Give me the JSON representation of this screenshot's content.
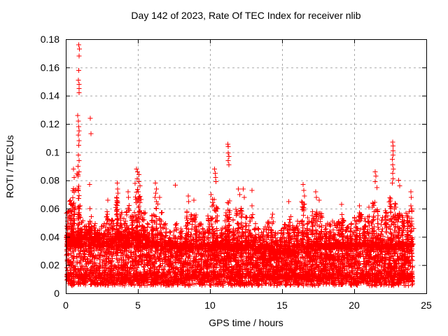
{
  "chart_data": {
    "type": "scatter",
    "title": "Day 142 of 2023, Rate Of TEC Index for receiver nlib",
    "xlabel": "GPS time / hours",
    "ylabel": "ROTI / TECUs",
    "xlim": [
      0,
      25
    ],
    "ylim": [
      0,
      0.18
    ],
    "xticks": [
      0,
      5,
      10,
      15,
      20,
      25
    ],
    "xtick_labels": [
      "0",
      "5",
      "10",
      "15",
      "20",
      "25"
    ],
    "yticks": [
      0,
      0.02,
      0.04,
      0.06,
      0.08,
      0.1,
      0.12,
      0.14,
      0.16,
      0.18
    ],
    "ytick_labels": [
      "0",
      "0.02",
      "0.04",
      "0.06",
      "0.08",
      "0.1",
      "0.12",
      "0.14",
      "0.16",
      "0.18"
    ],
    "grid": true,
    "grid_color": "#a8a8a8",
    "frame_color": "#000000",
    "legend": "none",
    "marker": {
      "shape": "plus",
      "color": "#ff0000",
      "size": 7
    },
    "x_data_range": [
      0.05,
      24.05
    ],
    "outliers": [
      [
        0.55,
        0.088
      ],
      [
        0.6,
        0.082
      ],
      [
        0.88,
        0.176
      ],
      [
        0.92,
        0.173
      ],
      [
        0.9,
        0.168
      ],
      [
        0.93,
        0.158
      ],
      [
        0.88,
        0.151
      ],
      [
        0.92,
        0.148
      ],
      [
        0.9,
        0.145
      ],
      [
        0.91,
        0.142
      ],
      [
        0.85,
        0.126
      ],
      [
        0.9,
        0.122
      ],
      [
        0.88,
        0.118
      ],
      [
        0.92,
        0.115
      ],
      [
        0.87,
        0.112
      ],
      [
        0.9,
        0.108
      ],
      [
        0.93,
        0.105
      ],
      [
        0.88,
        0.098
      ],
      [
        0.91,
        0.094
      ],
      [
        0.86,
        0.09
      ],
      [
        0.92,
        0.086
      ],
      [
        1.7,
        0.124
      ],
      [
        1.75,
        0.113
      ],
      [
        1.68,
        0.077
      ],
      [
        2.9,
        0.066
      ],
      [
        3.55,
        0.078
      ],
      [
        3.6,
        0.074
      ],
      [
        3.65,
        0.071
      ],
      [
        3.5,
        0.068
      ],
      [
        4.3,
        0.072
      ],
      [
        4.35,
        0.068
      ],
      [
        4.9,
        0.088
      ],
      [
        5.0,
        0.086
      ],
      [
        5.1,
        0.084
      ],
      [
        4.95,
        0.081
      ],
      [
        5.05,
        0.079
      ],
      [
        5.15,
        0.076
      ],
      [
        6.2,
        0.078
      ],
      [
        6.3,
        0.074
      ],
      [
        6.25,
        0.071
      ],
      [
        6.5,
        0.068
      ],
      [
        7.6,
        0.0765
      ],
      [
        8.5,
        0.069
      ],
      [
        8.55,
        0.065
      ],
      [
        8.9,
        0.066
      ],
      [
        10.1,
        0.07
      ],
      [
        10.3,
        0.088
      ],
      [
        10.35,
        0.085
      ],
      [
        10.4,
        0.082
      ],
      [
        10.45,
        0.079
      ],
      [
        11.25,
        0.1055
      ],
      [
        11.28,
        0.104
      ],
      [
        11.25,
        0.0995
      ],
      [
        11.3,
        0.097
      ],
      [
        11.27,
        0.094
      ],
      [
        11.32,
        0.091
      ],
      [
        11.95,
        0.074
      ],
      [
        12.05,
        0.07
      ],
      [
        12.3,
        0.074
      ],
      [
        12.35,
        0.068
      ],
      [
        12.9,
        0.073
      ],
      [
        12.92,
        0.062
      ],
      [
        15.5,
        0.065
      ],
      [
        16.45,
        0.077
      ],
      [
        16.5,
        0.073
      ],
      [
        16.55,
        0.069
      ],
      [
        17.35,
        0.072
      ],
      [
        17.4,
        0.068
      ],
      [
        17.55,
        0.066
      ],
      [
        19.1,
        0.063
      ],
      [
        20.35,
        0.062
      ],
      [
        21.0,
        0.061
      ],
      [
        21.45,
        0.086
      ],
      [
        21.5,
        0.083
      ],
      [
        21.48,
        0.079
      ],
      [
        21.55,
        0.075
      ],
      [
        22.65,
        0.107
      ],
      [
        22.7,
        0.1045
      ],
      [
        22.68,
        0.101
      ],
      [
        22.72,
        0.098
      ],
      [
        22.66,
        0.095
      ],
      [
        22.7,
        0.091
      ],
      [
        22.74,
        0.088
      ],
      [
        22.68,
        0.085
      ],
      [
        22.72,
        0.081
      ],
      [
        22.66,
        0.078
      ],
      [
        23.1,
        0.08
      ],
      [
        23.15,
        0.076
      ],
      [
        23.9,
        0.072
      ],
      [
        23.95,
        0.068
      ],
      [
        23.92,
        0.062
      ],
      [
        24.0,
        0.058
      ]
    ],
    "bumps": [
      [
        0.15,
        0.06
      ],
      [
        0.35,
        0.068
      ],
      [
        0.55,
        0.075
      ],
      [
        0.9,
        0.085
      ],
      [
        1.1,
        0.052
      ],
      [
        1.4,
        0.048
      ],
      [
        1.7,
        0.06
      ],
      [
        2.0,
        0.052
      ],
      [
        2.3,
        0.046
      ],
      [
        2.6,
        0.05
      ],
      [
        2.9,
        0.058
      ],
      [
        3.2,
        0.052
      ],
      [
        3.55,
        0.068
      ],
      [
        3.8,
        0.058
      ],
      [
        4.1,
        0.055
      ],
      [
        4.3,
        0.064
      ],
      [
        4.6,
        0.056
      ],
      [
        4.9,
        0.078
      ],
      [
        5.1,
        0.072
      ],
      [
        5.4,
        0.058
      ],
      [
        5.7,
        0.05
      ],
      [
        6.0,
        0.055
      ],
      [
        6.25,
        0.068
      ],
      [
        6.6,
        0.06
      ],
      [
        6.9,
        0.05
      ],
      [
        7.2,
        0.044
      ],
      [
        7.6,
        0.05
      ],
      [
        8.0,
        0.046
      ],
      [
        8.4,
        0.06
      ],
      [
        8.7,
        0.056
      ],
      [
        9.0,
        0.058
      ],
      [
        9.3,
        0.05
      ],
      [
        9.6,
        0.046
      ],
      [
        9.9,
        0.055
      ],
      [
        10.2,
        0.068
      ],
      [
        10.45,
        0.062
      ],
      [
        10.8,
        0.05
      ],
      [
        11.1,
        0.058
      ],
      [
        11.3,
        0.068
      ],
      [
        11.6,
        0.052
      ],
      [
        11.9,
        0.06
      ],
      [
        12.2,
        0.062
      ],
      [
        12.5,
        0.055
      ],
      [
        12.8,
        0.058
      ],
      [
        13.1,
        0.05
      ],
      [
        13.4,
        0.046
      ],
      [
        13.7,
        0.048
      ],
      [
        14.0,
        0.052
      ],
      [
        14.3,
        0.056
      ],
      [
        14.6,
        0.044
      ],
      [
        14.9,
        0.046
      ],
      [
        15.2,
        0.05
      ],
      [
        15.5,
        0.056
      ],
      [
        15.8,
        0.048
      ],
      [
        16.1,
        0.052
      ],
      [
        16.45,
        0.066
      ],
      [
        16.8,
        0.055
      ],
      [
        17.1,
        0.058
      ],
      [
        17.4,
        0.062
      ],
      [
        17.7,
        0.058
      ],
      [
        18.0,
        0.048
      ],
      [
        18.3,
        0.05
      ],
      [
        18.6,
        0.052
      ],
      [
        18.9,
        0.055
      ],
      [
        19.2,
        0.056
      ],
      [
        19.5,
        0.048
      ],
      [
        19.8,
        0.05
      ],
      [
        20.1,
        0.054
      ],
      [
        20.4,
        0.058
      ],
      [
        20.7,
        0.055
      ],
      [
        21.0,
        0.056
      ],
      [
        21.3,
        0.066
      ],
      [
        21.6,
        0.06
      ],
      [
        21.9,
        0.055
      ],
      [
        22.2,
        0.06
      ],
      [
        22.5,
        0.068
      ],
      [
        22.8,
        0.064
      ],
      [
        23.1,
        0.062
      ],
      [
        23.4,
        0.055
      ],
      [
        23.7,
        0.058
      ],
      [
        24.0,
        0.06
      ]
    ],
    "cloud": {
      "n": 6000,
      "seed": 42,
      "y_floor": 0.0055,
      "y_core_top_early": 0.042,
      "y_core_top": 0.035
    }
  }
}
